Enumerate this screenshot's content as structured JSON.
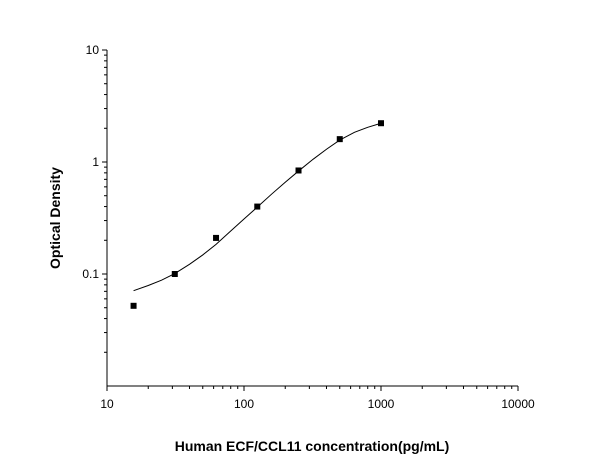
{
  "chart_data": {
    "type": "scatter",
    "xlabel": "Human ECF/CCL11 concentration(pg/mL)",
    "ylabel": "Optical Density",
    "xscale": "log",
    "yscale": "log",
    "xlim": [
      10,
      10000
    ],
    "ylim": [
      0.01,
      10
    ],
    "x_ticks": [
      {
        "value": 10,
        "label": "10"
      },
      {
        "value": 100,
        "label": "100"
      },
      {
        "value": 1000,
        "label": "1000"
      },
      {
        "value": 10000,
        "label": "10000"
      }
    ],
    "y_ticks": [
      {
        "value": 0.1,
        "label": "0.1"
      },
      {
        "value": 1,
        "label": "1"
      },
      {
        "value": 10,
        "label": "10"
      }
    ],
    "points": [
      {
        "x": 15.63,
        "y": 0.052
      },
      {
        "x": 31.25,
        "y": 0.1
      },
      {
        "x": 62.5,
        "y": 0.21
      },
      {
        "x": 125,
        "y": 0.4
      },
      {
        "x": 250,
        "y": 0.84
      },
      {
        "x": 500,
        "y": 1.6
      },
      {
        "x": 1000,
        "y": 2.22
      }
    ],
    "fit_curve": {
      "x": [
        15.63,
        20,
        25,
        31.25,
        40,
        50,
        62.5,
        80,
        100,
        125,
        160,
        200,
        250,
        320,
        400,
        500,
        640,
        800,
        1000
      ],
      "y": [
        0.071,
        0.079,
        0.088,
        0.101,
        0.122,
        0.148,
        0.184,
        0.242,
        0.31,
        0.395,
        0.52,
        0.66,
        0.83,
        1.06,
        1.3,
        1.57,
        1.84,
        2.04,
        2.22
      ]
    },
    "grid": false,
    "legend": "none"
  }
}
